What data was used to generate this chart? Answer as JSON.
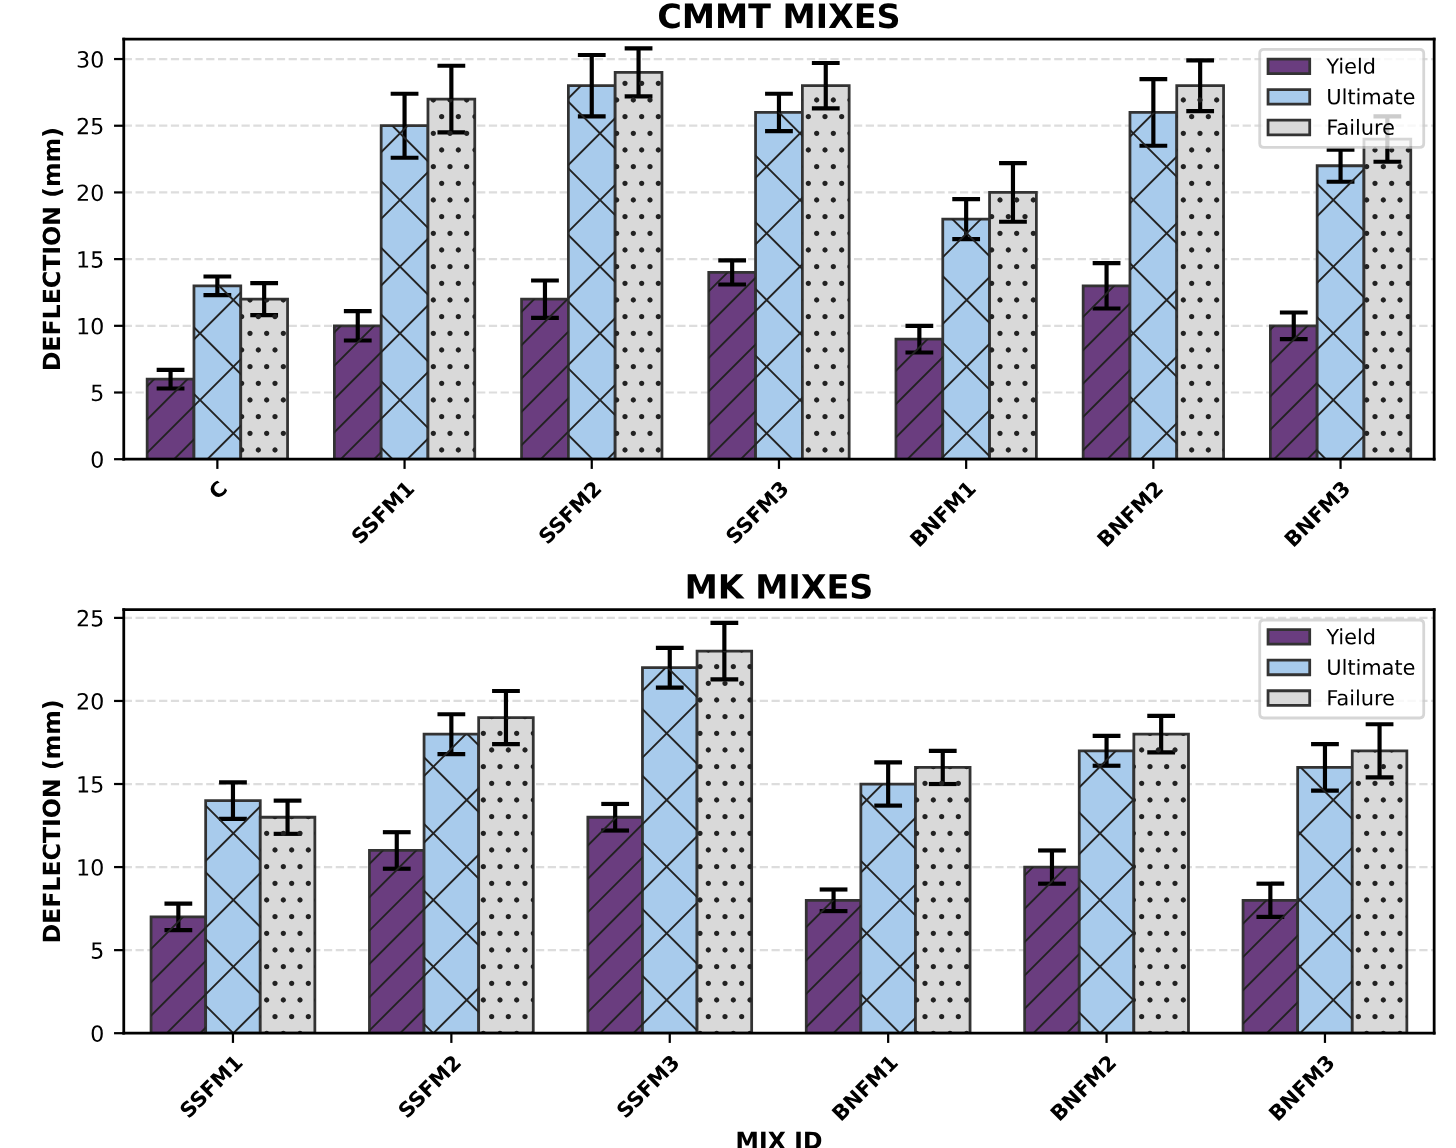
{
  "chart_data": [
    {
      "type": "bar",
      "title": "CMMT MIXES",
      "ylabel": "DEFLECTION (mm)",
      "categories": [
        "C",
        "SSFM1",
        "SSFM2",
        "SSFM3",
        "BNFM1",
        "BNFM2",
        "BNFM3"
      ],
      "ylim": [
        0,
        31.5
      ],
      "yticks": [
        0,
        5,
        10,
        15,
        20,
        25,
        30
      ],
      "grid": "y",
      "legend": "top right",
      "series": [
        {
          "name": "Yield",
          "color": "#6a3d7f",
          "values": [
            6,
            10,
            12,
            14,
            9,
            13,
            10
          ],
          "errors": [
            0.7,
            1.1,
            1.4,
            0.9,
            1.0,
            1.7,
            1.0
          ]
        },
        {
          "name": "Ultimate",
          "color": "#a8cbec",
          "values": [
            13,
            25,
            28,
            26,
            18,
            26,
            22
          ],
          "errors": [
            0.7,
            2.4,
            2.3,
            1.4,
            1.5,
            2.5,
            1.2
          ]
        },
        {
          "name": "Failure",
          "color": "#d9d9d9",
          "values": [
            12,
            27,
            29,
            28,
            20,
            28,
            24
          ],
          "errors": [
            1.2,
            2.5,
            1.8,
            1.7,
            2.2,
            1.9,
            1.7
          ]
        }
      ]
    },
    {
      "type": "bar",
      "title": "MK MIXES",
      "xlabel": "MIX ID",
      "ylabel": "DEFLECTION (mm)",
      "categories": [
        "SSFM1",
        "SSFM2",
        "SSFM3",
        "BNFM1",
        "BNFM2",
        "BNFM3"
      ],
      "ylim": [
        0,
        25.5
      ],
      "yticks": [
        0,
        5,
        10,
        15,
        20,
        25
      ],
      "grid": "y",
      "legend": "top right",
      "series": [
        {
          "name": "Yield",
          "color": "#6a3d7f",
          "values": [
            7,
            11,
            13,
            8,
            10,
            8
          ],
          "errors": [
            0.8,
            1.1,
            0.8,
            0.65,
            1.0,
            1.0
          ]
        },
        {
          "name": "Ultimate",
          "color": "#a8cbec",
          "values": [
            14,
            18,
            22,
            15,
            17,
            16
          ],
          "errors": [
            1.1,
            1.2,
            1.2,
            1.3,
            0.9,
            1.4
          ]
        },
        {
          "name": "Failure",
          "color": "#d9d9d9",
          "values": [
            13,
            19,
            23,
            16,
            18,
            17
          ],
          "errors": [
            1.0,
            1.6,
            1.7,
            1.0,
            1.1,
            1.6
          ]
        }
      ]
    }
  ]
}
